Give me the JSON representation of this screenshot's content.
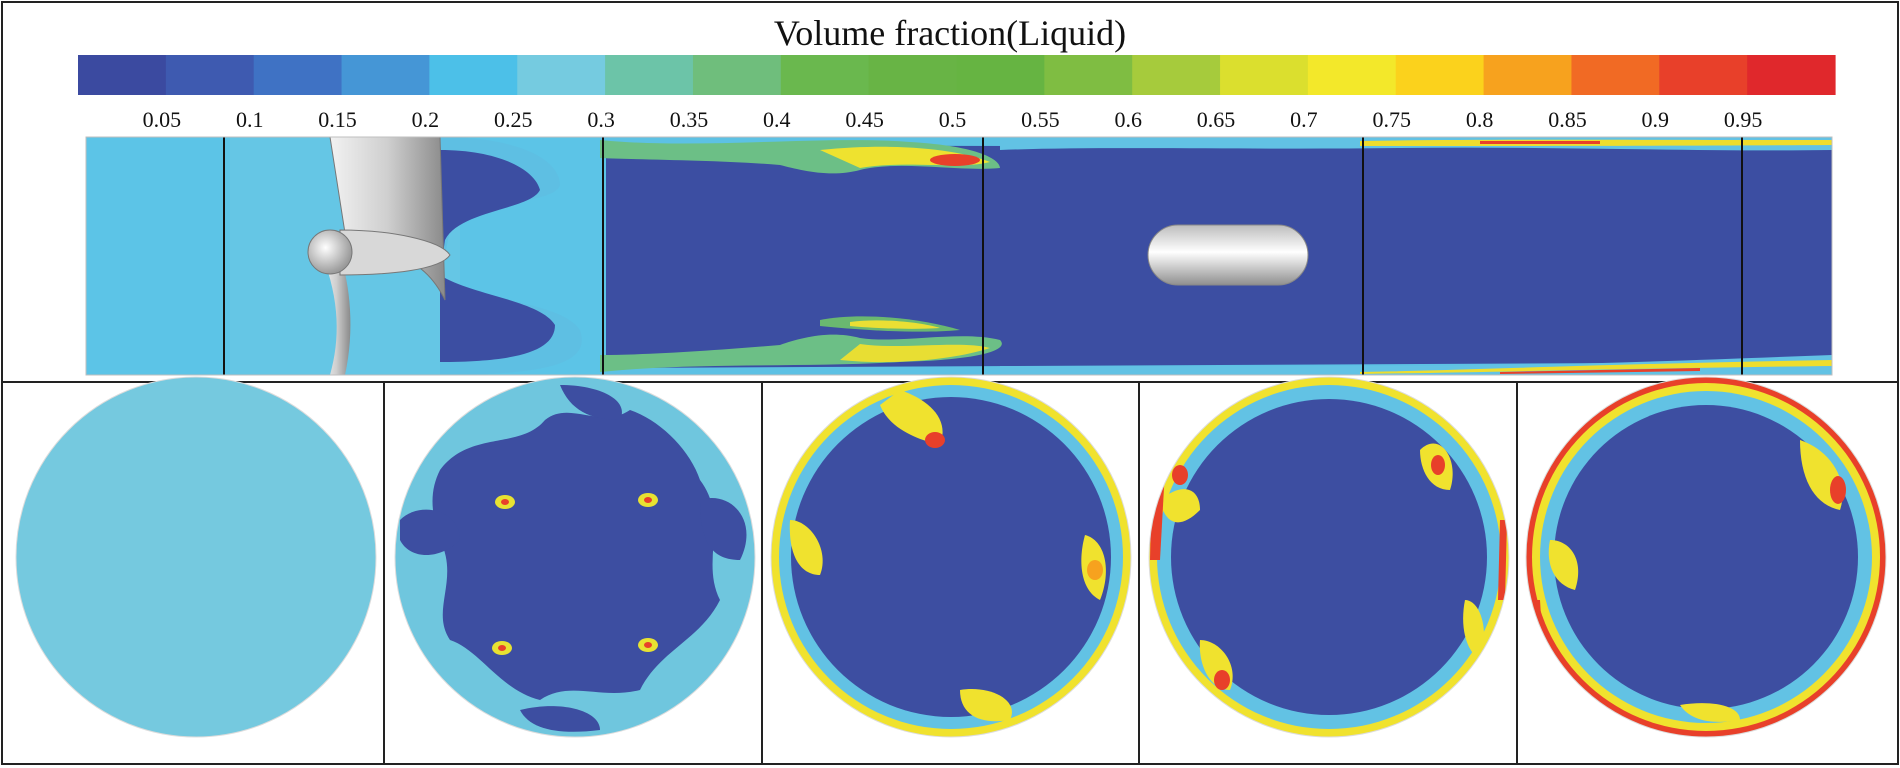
{
  "colorbar": {
    "title": "Volume fraction(Liquid)",
    "ticks": [
      "0.05",
      "0.1",
      "0.15",
      "0.2",
      "0.25",
      "0.3",
      "0.35",
      "0.4",
      "0.45",
      "0.5",
      "0.55",
      "0.6",
      "0.65",
      "0.7",
      "0.75",
      "0.8",
      "0.85",
      "0.9",
      "0.95"
    ],
    "colors": [
      "#3b4aa0",
      "#3e5ab0",
      "#3f72c4",
      "#4596d6",
      "#4cc0e8",
      "#75cbe0",
      "#6cc4a8",
      "#6fbe7c",
      "#6ab84e",
      "#68b445",
      "#66b442",
      "#7fbd42",
      "#a6cb3c",
      "#dbdf2e",
      "#f3e82a",
      "#fbd21c",
      "#f7a21e",
      "#f16a24",
      "#e8402a",
      "#e0282c"
    ]
  },
  "scene": {
    "background": "#3c4ea2",
    "fluid_light": "#5ac3e6",
    "ring_colors": {
      "cyan": "#62c3e4",
      "teal": "#7fcdd7",
      "green": "#6fbf6a",
      "yellow": "#f2e52f",
      "orange": "#f7a21e",
      "red": "#e8402a"
    }
  }
}
